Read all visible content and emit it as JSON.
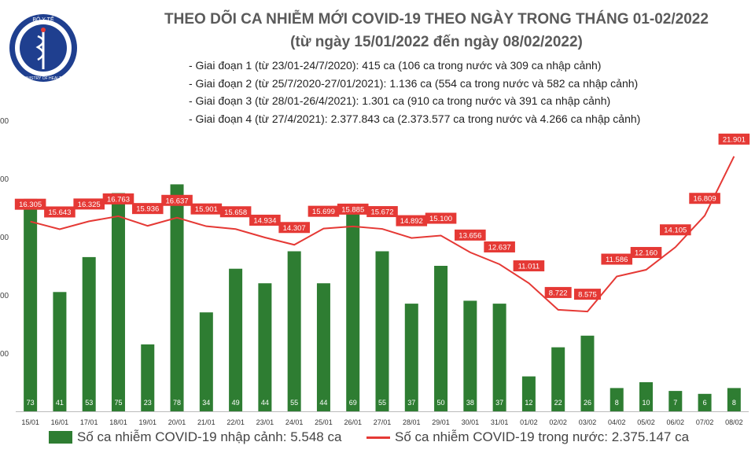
{
  "header": {
    "logo_text_top": "BỘ Y TẾ",
    "logo_text_bottom": "MINISTRY OF HEALTH",
    "title": "THEO DÕI CA NHIỄM MỚI COVID-19 THEO NGÀY TRONG THÁNG 01-02/2022",
    "subtitle": "(từ ngày 15/01/2022 đến ngày 08/02/2022)",
    "phases": [
      "- Giai đoạn 1 (từ 23/01-24/7/2020): 415 ca (106 ca trong nước và 309 ca nhập cảnh)",
      "- Giai đoạn 2 (từ 25/7/2020-27/01/2021): 1.136 ca (554 ca trong nước và 582 ca nhập cảnh)",
      "- Giai đoạn 3 (từ 28/01-26/4/2021): 1.301 ca (910 ca trong nước và 391 ca nhập cảnh)",
      "- Giai đoạn 4 (từ 27/4/2021): 2.377.843 ca (2.373.577 ca trong nước và 4.266 ca nhập cảnh)"
    ]
  },
  "legend": {
    "bar_label": "Số ca nhiễm COVID-19 nhập cảnh: 5.548 ca",
    "line_label": "Số ca nhiễm COVID-19 trong nước: 2.375.147 ca"
  },
  "colors": {
    "bar": "#2e7d32",
    "line": "#e53935",
    "label_bg": "#e53935"
  },
  "chart_data": {
    "type": "bar+line",
    "categories": [
      "15/01",
      "16/01",
      "17/01",
      "18/01",
      "19/01",
      "20/01",
      "21/01",
      "22/01",
      "23/01",
      "24/01",
      "25/01",
      "26/01",
      "27/01",
      "28/01",
      "29/01",
      "30/01",
      "31/01",
      "01/02",
      "02/02",
      "03/02",
      "04/02",
      "05/02",
      "06/02",
      "07/02",
      "08/02"
    ],
    "series": [
      {
        "name": "Số ca nhiễm COVID-19 nhập cảnh",
        "type": "bar",
        "values": [
          73,
          41,
          53,
          75,
          23,
          78,
          34,
          49,
          44,
          55,
          44,
          69,
          55,
          37,
          50,
          38,
          37,
          12,
          22,
          26,
          8,
          10,
          7,
          6,
          8
        ],
        "labels": [
          "73",
          "41",
          "53",
          "75",
          "23",
          "78",
          "34",
          "49",
          "44",
          "55",
          "44",
          "69",
          "55",
          "37",
          "50",
          "38",
          "37",
          "12",
          "22",
          "26",
          "8",
          "10",
          "7",
          "6",
          "8"
        ]
      },
      {
        "name": "Số ca nhiễm COVID-19 trong nước",
        "type": "line",
        "values": [
          16305,
          15643,
          16325,
          16763,
          15936,
          16637,
          15901,
          15658,
          14934,
          14307,
          15699,
          15885,
          15672,
          14892,
          15100,
          13656,
          12637,
          11011,
          8722,
          8575,
          11586,
          12160,
          14105,
          16809,
          21901
        ],
        "labels": [
          "16.305",
          "15.643",
          "16.325",
          "16.763",
          "15.936",
          "16.637",
          "15.901",
          "15.658",
          "14.934",
          "14.307",
          "15.699",
          "15.885",
          "15.672",
          "14.892",
          "15.100",
          "13.656",
          "12.637",
          "11.011",
          "8.722",
          "8.575",
          "11.586",
          "12.160",
          "14.105",
          "16.809",
          "21.901"
        ]
      }
    ],
    "bar_ylim": [
      0,
      100
    ],
    "line_ylim": [
      0,
      25000
    ],
    "y_tick_labels": [
      "00",
      "00",
      "00",
      "00",
      "00"
    ],
    "grid": false
  }
}
